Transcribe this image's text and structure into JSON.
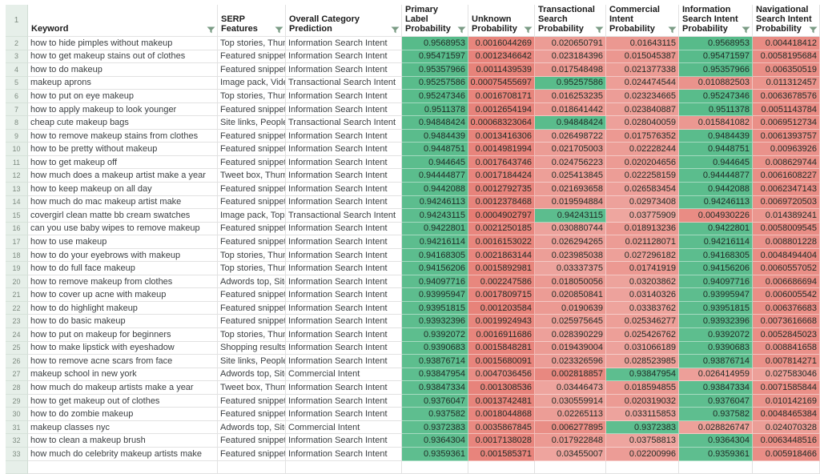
{
  "app": {
    "kind": "spreadsheet-filtered-view"
  },
  "colors": {
    "scale_green": "#57bb8a",
    "scale_red": "#e67c73",
    "row_header_bg": "#e6efe9",
    "gridline": "#e2e2e2",
    "filter_icon": "#7a9b84"
  },
  "table": {
    "header_row_number": "1",
    "columns": [
      {
        "id": "keyword",
        "label": "Keyword",
        "filter": true
      },
      {
        "id": "serp",
        "label": "SERP\nFeatures",
        "filter": true
      },
      {
        "id": "category",
        "label": "Overall Category\nPrediction",
        "filter": true
      },
      {
        "id": "primary",
        "label": "Primary\nLabel\nProbability",
        "filter": true
      },
      {
        "id": "unknown",
        "label": "Unknown\nProbability",
        "filter": true
      },
      {
        "id": "transactional",
        "label": "Transactional\nSearch\nProbability",
        "filter": true
      },
      {
        "id": "commercial",
        "label": "Commercial\nIntent\nProbability",
        "filter": true
      },
      {
        "id": "information",
        "label": "Information\nSearch Intent\nProbability",
        "filter": true
      },
      {
        "id": "navigational",
        "label": "Navigational\nSearch Intent\nProbability",
        "filter": true
      }
    ],
    "rows": [
      {
        "n": "2",
        "keyword": "how to hide pimples without makeup",
        "serp": "Top stories, Thumb",
        "category": "Information Search Intent",
        "values": [
          "0.9568953",
          "0.0016044269",
          "0.020650791",
          "0.01643115",
          "0.9568953",
          "0.004418412"
        ]
      },
      {
        "n": "3",
        "keyword": "how to get makeup stains out of clothes",
        "serp": "Featured snippet, T",
        "category": "Information Search Intent",
        "values": [
          "0.95471597",
          "0.0012346642",
          "0.023184396",
          "0.015045387",
          "0.95471597",
          "0.0058195684"
        ]
      },
      {
        "n": "4",
        "keyword": "how to do makeup",
        "serp": "Featured snippet, T",
        "category": "Information Search Intent",
        "values": [
          "0.95357966",
          "0.0011439539",
          "0.017548498",
          "0.021377338",
          "0.95357966",
          "0.006350519"
        ]
      },
      {
        "n": "5",
        "keyword": "makeup aprons",
        "serp": "Image pack, Video",
        "category": "Transactional Search Intent",
        "values": [
          "0.95257586",
          "0.00075455697",
          "0.95257586",
          "0.024474544",
          "0.010882503",
          "0.011312457"
        ]
      },
      {
        "n": "6",
        "keyword": "how to put on eye makeup",
        "serp": "Top stories, Thumb",
        "category": "Information Search Intent",
        "values": [
          "0.95247346",
          "0.0016708171",
          "0.016253235",
          "0.023234665",
          "0.95247346",
          "0.0063678576"
        ]
      },
      {
        "n": "7",
        "keyword": "how to apply makeup to look younger",
        "serp": "Featured snippet, T",
        "category": "Information Search Intent",
        "values": [
          "0.9511378",
          "0.0012654194",
          "0.018641442",
          "0.023840887",
          "0.9511378",
          "0.0051143784"
        ]
      },
      {
        "n": "8",
        "keyword": "cheap cute makeup bags",
        "serp": "Site links, People a",
        "category": "Transactional Search Intent",
        "values": [
          "0.94848424",
          "0.00068323064",
          "0.94848424",
          "0.028040059",
          "0.015841082",
          "0.0069512734"
        ]
      },
      {
        "n": "9",
        "keyword": "how to remove makeup stains from clothes",
        "serp": "Featured snippet, T",
        "category": "Information Search Intent",
        "values": [
          "0.9484439",
          "0.0013416306",
          "0.026498722",
          "0.017576352",
          "0.9484439",
          "0.0061393757"
        ]
      },
      {
        "n": "10",
        "keyword": "how to be pretty without makeup",
        "serp": "Featured snippet, T",
        "category": "Information Search Intent",
        "values": [
          "0.9448751",
          "0.0014981994",
          "0.021705003",
          "0.02228244",
          "0.9448751",
          "0.00963926"
        ]
      },
      {
        "n": "11",
        "keyword": "how to get makeup off",
        "serp": "Featured snippet, T",
        "category": "Information Search Intent",
        "values": [
          "0.944645",
          "0.0017643746",
          "0.024756223",
          "0.020204656",
          "0.944645",
          "0.008629744"
        ]
      },
      {
        "n": "12",
        "keyword": "how much does a makeup artist make a year",
        "serp": "Tweet box, Thumb",
        "category": "Information Search Intent",
        "values": [
          "0.94444877",
          "0.0017184424",
          "0.025413845",
          "0.022258159",
          "0.94444877",
          "0.0061608227"
        ]
      },
      {
        "n": "13",
        "keyword": "how to keep makeup on all day",
        "serp": "Featured snippet, T",
        "category": "Information Search Intent",
        "values": [
          "0.9442088",
          "0.0012792735",
          "0.021693658",
          "0.026583454",
          "0.9442088",
          "0.0062347143"
        ]
      },
      {
        "n": "14",
        "keyword": "how much do mac makeup artist make",
        "serp": "Featured snippet, F",
        "category": "Information Search Intent",
        "values": [
          "0.94246113",
          "0.0012378468",
          "0.019594884",
          "0.02973408",
          "0.94246113",
          "0.0069720503"
        ]
      },
      {
        "n": "15",
        "keyword": "covergirl clean matte bb cream swatches",
        "serp": "Image pack, Top st",
        "category": "Transactional Search Intent",
        "values": [
          "0.94243115",
          "0.0004902797",
          "0.94243115",
          "0.03775909",
          "0.004930226",
          "0.014389241"
        ]
      },
      {
        "n": "16",
        "keyword": "can you use baby wipes to remove makeup",
        "serp": "Featured snippet, F",
        "category": "Information Search Intent",
        "values": [
          "0.9422801",
          "0.0021250185",
          "0.030880744",
          "0.018913236",
          "0.9422801",
          "0.0058009545"
        ]
      },
      {
        "n": "17",
        "keyword": "how to use makeup",
        "serp": "Featured snippet, T",
        "category": "Information Search Intent",
        "values": [
          "0.94216114",
          "0.0016153022",
          "0.026294265",
          "0.021128071",
          "0.94216114",
          "0.008801228"
        ]
      },
      {
        "n": "18",
        "keyword": "how to do your eyebrows with makeup",
        "serp": "Top stories, Thumb",
        "category": "Information Search Intent",
        "values": [
          "0.94168305",
          "0.0021863144",
          "0.023985038",
          "0.027296182",
          "0.94168305",
          "0.0048494404"
        ]
      },
      {
        "n": "19",
        "keyword": "how to do full face makeup",
        "serp": "Top stories, Thumb",
        "category": "Information Search Intent",
        "values": [
          "0.94156206",
          "0.0015892981",
          "0.03337375",
          "0.01741919",
          "0.94156206",
          "0.0060557052"
        ]
      },
      {
        "n": "20",
        "keyword": "how to remove makeup from clothes",
        "serp": "Adwords top, Site l",
        "category": "Information Search Intent",
        "values": [
          "0.94097716",
          "0.002247586",
          "0.018050056",
          "0.03203862",
          "0.94097716",
          "0.006686694"
        ]
      },
      {
        "n": "21",
        "keyword": "how to cover up acne with makeup",
        "serp": "Featured snippet, F",
        "category": "Information Search Intent",
        "values": [
          "0.93995947",
          "0.0017809715",
          "0.020850841",
          "0.03140326",
          "0.93995947",
          "0.006005542"
        ]
      },
      {
        "n": "22",
        "keyword": "how to do highlight makeup",
        "serp": "Featured snippet, T",
        "category": "Information Search Intent",
        "values": [
          "0.93951815",
          "0.001203584",
          "0.0190639",
          "0.03383762",
          "0.93951815",
          "0.006376683"
        ]
      },
      {
        "n": "23",
        "keyword": "how to do basic makeup",
        "serp": "Featured snippet, T",
        "category": "Information Search Intent",
        "values": [
          "0.93932396",
          "0.0019924943",
          "0.025975645",
          "0.025346277",
          "0.93932396",
          "0.0073616668"
        ]
      },
      {
        "n": "24",
        "keyword": "how to put on makeup for beginners",
        "serp": "Top stories, Thumb",
        "category": "Information Search Intent",
        "values": [
          "0.9392072",
          "0.0016911686",
          "0.028390229",
          "0.025426762",
          "0.9392072",
          "0.0052845023"
        ]
      },
      {
        "n": "25",
        "keyword": "how to make lipstick with eyeshadow",
        "serp": "Shopping results, T",
        "category": "Information Search Intent",
        "values": [
          "0.9390683",
          "0.0015848281",
          "0.019439004",
          "0.031066189",
          "0.9390683",
          "0.008841658"
        ]
      },
      {
        "n": "26",
        "keyword": "how to remove acne scars from face",
        "serp": "Site links, People a",
        "category": "Information Search Intent",
        "values": [
          "0.93876714",
          "0.0015680091",
          "0.023326596",
          "0.028523985",
          "0.93876714",
          "0.007814271"
        ]
      },
      {
        "n": "27",
        "keyword": "makeup school in new york",
        "serp": "Adwords top, Site l",
        "category": "Commercial Intent",
        "values": [
          "0.93847954",
          "0.0047036456",
          "0.002818857",
          "0.93847954",
          "0.026414959",
          "0.027583046"
        ]
      },
      {
        "n": "28",
        "keyword": "how much do makeup artists make a year",
        "serp": "Tweet box, Thumb",
        "category": "Information Search Intent",
        "values": [
          "0.93847334",
          "0.001308536",
          "0.03446473",
          "0.018594855",
          "0.93847334",
          "0.0071585844"
        ]
      },
      {
        "n": "29",
        "keyword": "how to get makeup out of clothes",
        "serp": "Featured snippet, T",
        "category": "Information Search Intent",
        "values": [
          "0.9376047",
          "0.0013742481",
          "0.030559914",
          "0.020319032",
          "0.9376047",
          "0.010142169"
        ]
      },
      {
        "n": "30",
        "keyword": "how to do zombie makeup",
        "serp": "Featured snippet, T",
        "category": "Information Search Intent",
        "values": [
          "0.937582",
          "0.0018044868",
          "0.02265113",
          "0.033115853",
          "0.937582",
          "0.0048465384"
        ]
      },
      {
        "n": "31",
        "keyword": "makeup classes nyc",
        "serp": "Adwords top, Site l",
        "category": "Commercial Intent",
        "values": [
          "0.9372383",
          "0.0035867845",
          "0.006277895",
          "0.9372383",
          "0.028826747",
          "0.024070328"
        ]
      },
      {
        "n": "32",
        "keyword": "how to clean a makeup brush",
        "serp": "Featured snippet, T",
        "category": "Information Search Intent",
        "values": [
          "0.9364304",
          "0.0017138028",
          "0.017922848",
          "0.03758813",
          "0.9364304",
          "0.0063448516"
        ]
      },
      {
        "n": "33",
        "keyword": "how much do celebrity makeup artists make",
        "serp": "Featured snippet, F",
        "category": "Information Search Intent",
        "values": [
          "0.9359361",
          "0.001585371",
          "0.03455007",
          "0.02200996",
          "0.9359361",
          "0.005918466"
        ]
      }
    ]
  }
}
